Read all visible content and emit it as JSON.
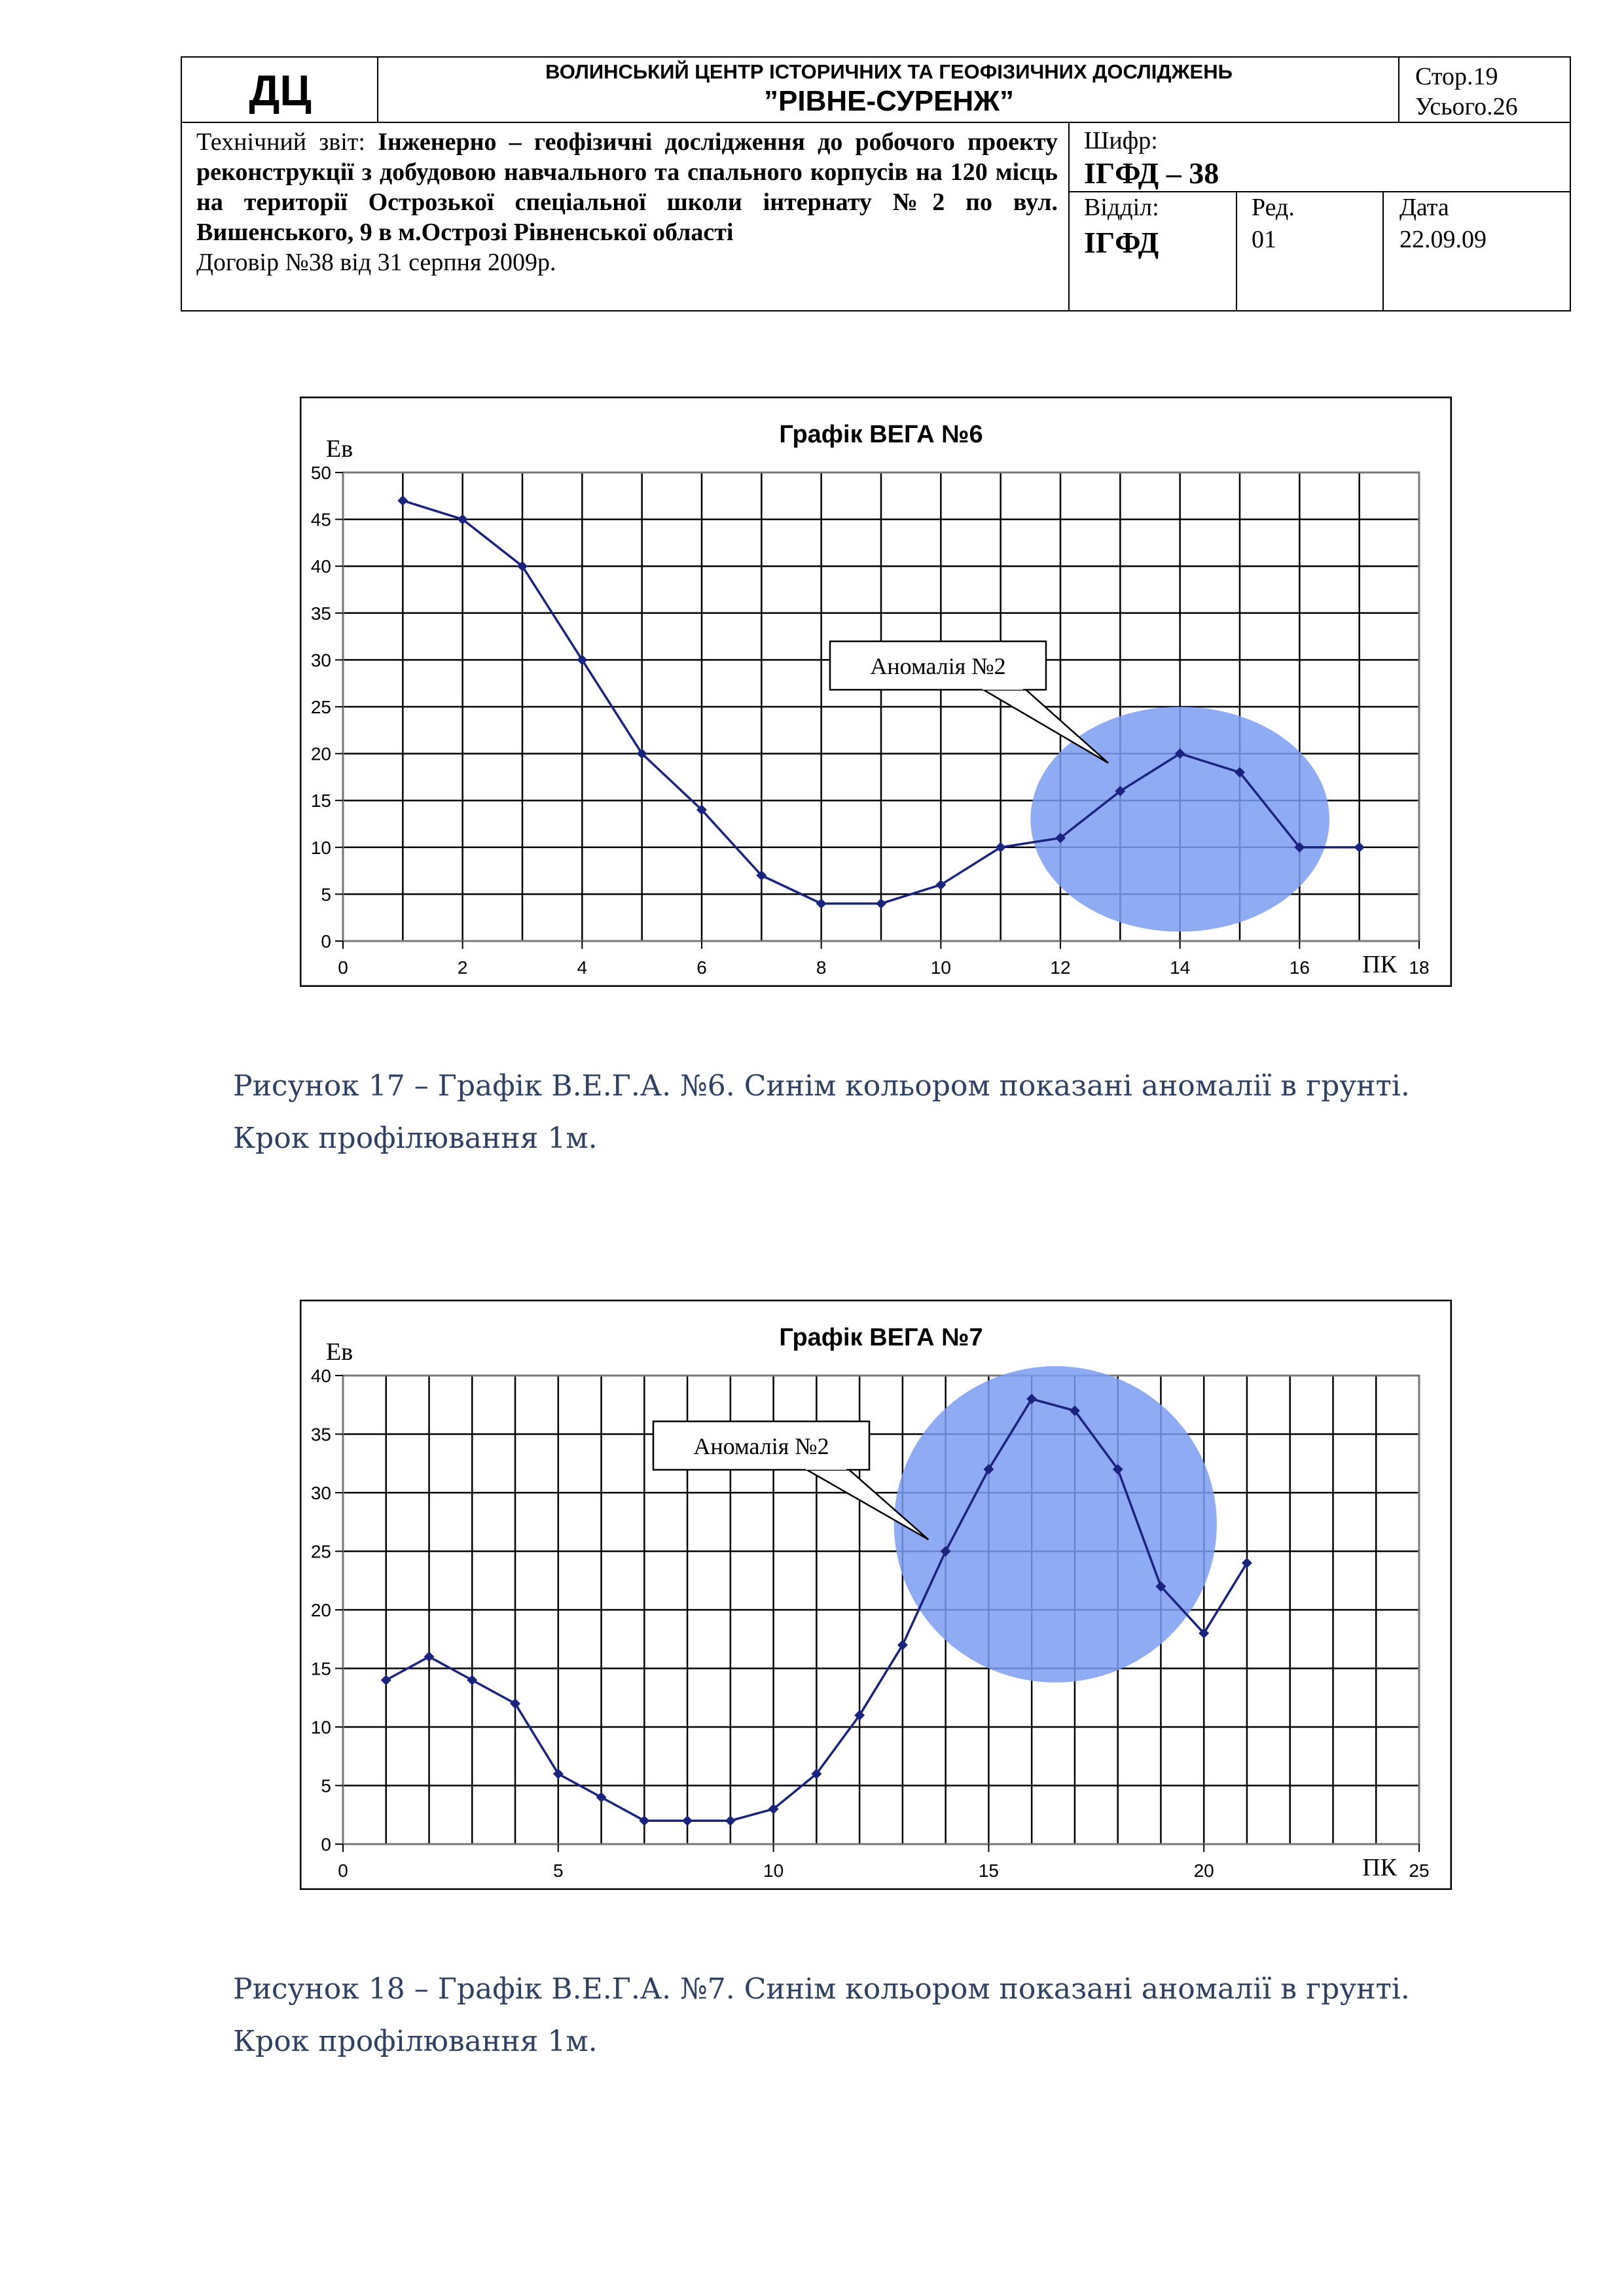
{
  "header": {
    "dc": "ДЦ",
    "org_line1": "ВОЛИНСЬКИЙ ЦЕНТР ІСТОРИЧНИХ ТА ГЕОФІЗИЧНИХ ДОСЛІДЖЕНЬ",
    "org_line2": "”РІВНЕ-СУРЕНЖ”",
    "page": "Стор.19",
    "total": "Усього.26",
    "report_prefix": "Технічний звіт: ",
    "report_title": "Інженерно – геофізичні дослідження до робочого проекту реконструкції з добудовою навчального та спального корпусів на 120 місць на території Острозької спеціальної школи інтернату №2 по вул. Вишенського, 9 в м.Острозі Рівненської області",
    "contract": "Договір №38 від 31 серпня 2009р.",
    "code_label": "Шифр:",
    "code_value": "ІГФД – 38",
    "dept_label": "Відділ:",
    "dept_value": "ІГФД",
    "red_label": "Ред.",
    "red_value": "01",
    "date_label": "Дата",
    "date_value": "22.09.09"
  },
  "figures": [
    {
      "caption": "Рисунок 17 – Графік В.Е.Г.А. №6. Синім кольором показані аномалії в грунті. Крок профілювання 1м.",
      "annotation": "Аномалія №2",
      "chart_data": {
        "type": "line",
        "title": "Графік ВЕГА №6",
        "ylabel": "Ев",
        "xlabel": "ПК",
        "xlim": [
          0,
          18
        ],
        "ylim": [
          0,
          50
        ],
        "x_ticks": [
          0,
          2,
          4,
          6,
          8,
          10,
          12,
          14,
          16,
          18
        ],
        "y_ticks": [
          0,
          5,
          10,
          15,
          20,
          25,
          30,
          35,
          40,
          45,
          50
        ],
        "x_grid_step": 1,
        "y_grid_step": 5,
        "grid": true,
        "x": [
          1,
          2,
          3,
          4,
          5,
          6,
          7,
          8,
          9,
          10,
          11,
          12,
          13,
          14,
          15,
          16,
          17
        ],
        "values": [
          47,
          45,
          40,
          30,
          20,
          14,
          7,
          4,
          4,
          6,
          10,
          11,
          16,
          20,
          18,
          10,
          10
        ],
        "anomaly": {
          "cx": 14,
          "cy": 13,
          "rx": 2.5,
          "ry": 12
        },
        "callout_target": {
          "x": 12.8,
          "y": 19
        }
      }
    },
    {
      "caption": "Рисунок 18 – Графік В.Е.Г.А. №7. Синім кольором показані аномалії в грунті. Крок профілювання 1м.",
      "annotation": "Аномалія №2",
      "chart_data": {
        "type": "line",
        "title": "Графік ВЕГА №7",
        "ylabel": "Ев",
        "xlabel": "ПК",
        "xlim": [
          0,
          25
        ],
        "ylim": [
          0,
          40
        ],
        "x_ticks": [
          0,
          5,
          10,
          15,
          20,
          25
        ],
        "y_ticks": [
          0,
          5,
          10,
          15,
          20,
          25,
          30,
          35,
          40
        ],
        "x_grid_step": 1,
        "y_grid_step": 5,
        "grid": true,
        "x": [
          1,
          2,
          3,
          4,
          5,
          6,
          7,
          8,
          9,
          10,
          11,
          12,
          13,
          14,
          15,
          16,
          17,
          18,
          19,
          20,
          21
        ],
        "values": [
          14,
          16,
          14,
          12,
          6,
          4,
          2,
          2,
          2,
          3,
          6,
          11,
          17,
          25,
          32,
          38,
          37,
          32,
          22,
          18,
          24
        ],
        "anomaly": {
          "cx": 16.55,
          "cy": 27.3,
          "rx": 3.75,
          "ry": 13.5
        },
        "callout_target": {
          "x": 13.6,
          "y": 26
        }
      }
    }
  ],
  "colors": {
    "line": "#1a237e",
    "anomaly_fill": "#7b9cf2",
    "grid": "#000000",
    "caption": "#2e4063"
  }
}
